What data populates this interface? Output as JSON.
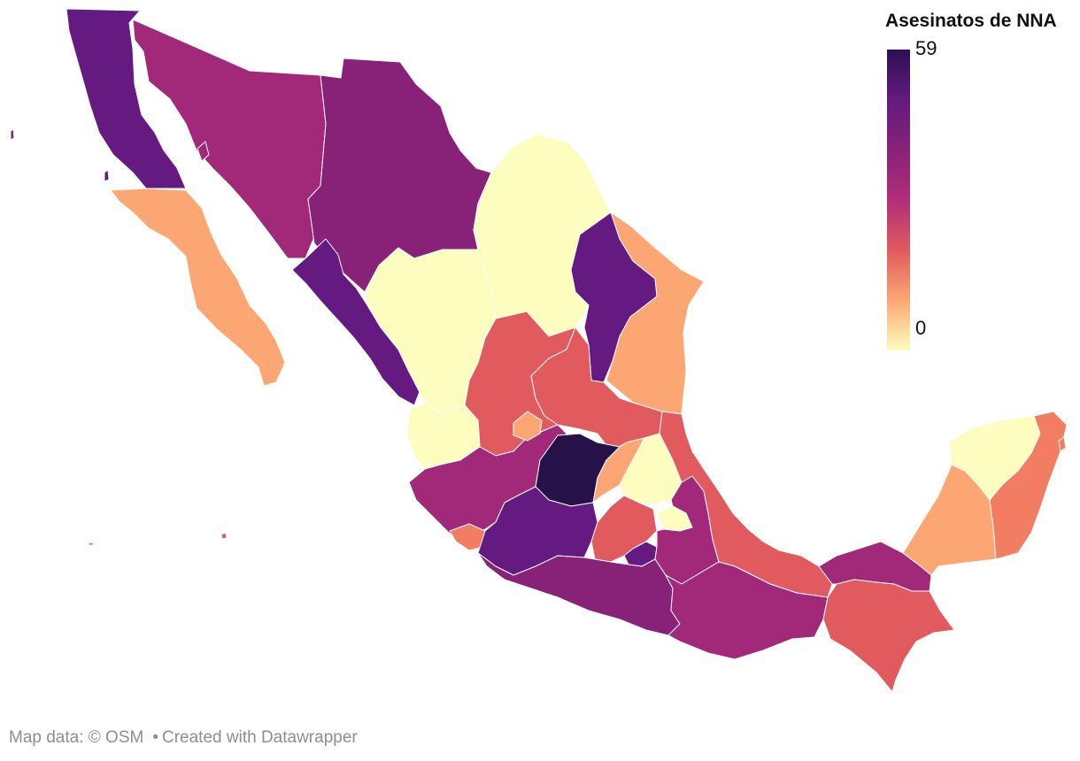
{
  "legend": {
    "title": "Asesinatos de NNA",
    "max_label": "59",
    "min_label": "0",
    "scale": {
      "min": 0,
      "max": 59,
      "stops": [
        "#fcfdbf",
        "#fca773",
        "#e05a5e",
        "#b12e7a",
        "#872278",
        "#641a80",
        "#2b1051"
      ]
    }
  },
  "footer": {
    "map_credit": "Map data: © OSM",
    "separator": "•",
    "created_with": "Created with Datawrapper"
  },
  "colors": {
    "background": "#ffffff",
    "state_border": "#ffffff",
    "c59": "#261249",
    "c35": "#641a80",
    "c28": "#872278",
    "c20": "#a2287a",
    "c11": "#e05a5e",
    "c6": "#f27d62",
    "c3": "#fca773",
    "c0": "#fcfdbf"
  },
  "states": [
    {
      "name": "baja-california",
      "color": "c35"
    },
    {
      "name": "baja-california-sur",
      "color": "c3"
    },
    {
      "name": "sonora",
      "color": "c20"
    },
    {
      "name": "chihuahua",
      "color": "c28"
    },
    {
      "name": "coahuila",
      "color": "c0"
    },
    {
      "name": "nuevo-leon",
      "color": "c35"
    },
    {
      "name": "tamaulipas",
      "color": "c3"
    },
    {
      "name": "sinaloa",
      "color": "c35"
    },
    {
      "name": "durango",
      "color": "c0"
    },
    {
      "name": "zacatecas",
      "color": "c11"
    },
    {
      "name": "san-luis-potosi",
      "color": "c11"
    },
    {
      "name": "nayarit",
      "color": "c0"
    },
    {
      "name": "jalisco",
      "color": "c20"
    },
    {
      "name": "aguascalientes",
      "color": "c3"
    },
    {
      "name": "guanajuato",
      "color": "c59"
    },
    {
      "name": "queretaro",
      "color": "c3"
    },
    {
      "name": "hidalgo",
      "color": "c0"
    },
    {
      "name": "colima",
      "color": "c6"
    },
    {
      "name": "michoacan",
      "color": "c35"
    },
    {
      "name": "estado-de-mexico",
      "color": "c11"
    },
    {
      "name": "morelos",
      "color": "c35"
    },
    {
      "name": "tlaxcala",
      "color": "c0"
    },
    {
      "name": "puebla",
      "color": "c20"
    },
    {
      "name": "veracruz",
      "color": "c11"
    },
    {
      "name": "guerrero",
      "color": "c28"
    },
    {
      "name": "oaxaca",
      "color": "c20"
    },
    {
      "name": "tabasco",
      "color": "c20"
    },
    {
      "name": "chiapas",
      "color": "c11"
    },
    {
      "name": "campeche",
      "color": "c3"
    },
    {
      "name": "yucatan",
      "color": "c0"
    },
    {
      "name": "quintana-roo",
      "color": "c6"
    }
  ]
}
